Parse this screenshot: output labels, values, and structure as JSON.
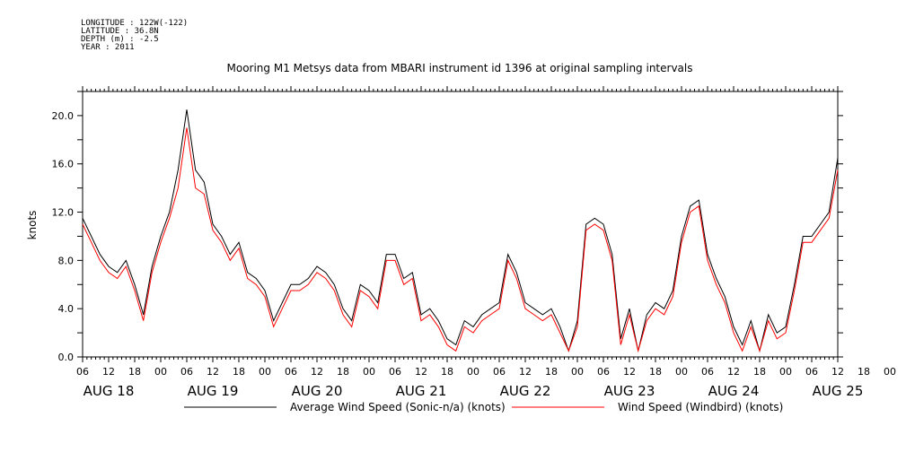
{
  "meta": {
    "longitude": "LONGITUDE : 122W(-122)",
    "latitude": "LATITUDE : 36.8N",
    "depth": "DEPTH (m) : -2.5",
    "year": "YEAR : 2011"
  },
  "chart_data": {
    "type": "line",
    "title": "Mooring M1 Metsys data from MBARI instrument id 1396 at original sampling intervals",
    "xlabel": "",
    "ylabel": "knots",
    "ylim": [
      0,
      22
    ],
    "yticks": [
      "0.0",
      "4.0",
      "8.0",
      "12.0",
      "16.0",
      "20.0"
    ],
    "xlim_hours": [
      0,
      174
    ],
    "hour_ticks": [
      "06",
      "12",
      "18",
      "00",
      "06",
      "12",
      "18",
      "00",
      "06",
      "12",
      "18",
      "00",
      "06",
      "12",
      "18",
      "00",
      "06",
      "12",
      "18",
      "00",
      "06",
      "12",
      "18",
      "00",
      "06",
      "12",
      "18",
      "00",
      "06",
      "12",
      "18",
      "00",
      "06"
    ],
    "day_labels": [
      "AUG 18",
      "AUG 19",
      "AUG 20",
      "AUG 21",
      "AUG 22",
      "AUG 23",
      "AUG 24",
      "AUG 25"
    ],
    "grid": false,
    "legend_position": "bottom",
    "series": [
      {
        "name": "Average Wind Speed (Sonic-n/a) (knots)",
        "color": "#000000",
        "x_hours": [
          0,
          2,
          4,
          6,
          8,
          10,
          12,
          14,
          16,
          18,
          20,
          22,
          24,
          26,
          28,
          30,
          32,
          34,
          36,
          38,
          40,
          42,
          44,
          46,
          48,
          50,
          52,
          54,
          56,
          58,
          60,
          62,
          64,
          66,
          68,
          70,
          72,
          74,
          76,
          78,
          80,
          82,
          84,
          86,
          88,
          90,
          92,
          94,
          96,
          98,
          100,
          102,
          104,
          106,
          108,
          110,
          112,
          114,
          116,
          118,
          120,
          122,
          124,
          126,
          128,
          130,
          132,
          134,
          136,
          138,
          140,
          142,
          144,
          146,
          148,
          150,
          152,
          154,
          156,
          158,
          160,
          162,
          164,
          166,
          168,
          170,
          172,
          174
        ],
        "values": [
          11.5,
          10,
          8.5,
          7.5,
          7,
          8,
          6,
          3.5,
          7.5,
          10,
          12,
          15.5,
          20.5,
          15.5,
          14.5,
          11,
          10,
          8.5,
          9.5,
          7,
          6.5,
          5.5,
          3,
          4.5,
          6,
          6,
          6.5,
          7.5,
          7,
          6,
          4,
          3,
          6,
          5.5,
          4.5,
          8.5,
          8.5,
          6.5,
          7,
          3.5,
          4,
          3,
          1.5,
          1,
          3,
          2.5,
          3.5,
          4,
          4.5,
          8.5,
          7,
          4.5,
          4,
          3.5,
          4,
          2.5,
          0.5,
          3,
          11,
          11.5,
          11,
          8.5,
          1.5,
          4,
          0.5,
          3.5,
          4.5,
          4,
          5.5,
          10,
          12.5,
          13,
          8.5,
          6.5,
          5,
          2.5,
          1,
          3,
          0.5,
          3.5,
          2,
          2.5,
          6,
          10,
          10,
          11,
          12,
          16.5
        ]
      },
      {
        "name": "Wind Speed (Windbird) (knots)",
        "color": "#ff0000",
        "x_hours": [
          0,
          2,
          4,
          6,
          8,
          10,
          12,
          14,
          16,
          18,
          20,
          22,
          24,
          26,
          28,
          30,
          32,
          34,
          36,
          38,
          40,
          42,
          44,
          46,
          48,
          50,
          52,
          54,
          56,
          58,
          60,
          62,
          64,
          66,
          68,
          70,
          72,
          74,
          76,
          78,
          80,
          82,
          84,
          86,
          88,
          90,
          92,
          94,
          96,
          98,
          100,
          102,
          104,
          106,
          108,
          110,
          112,
          114,
          116,
          118,
          120,
          122,
          124,
          126,
          128,
          130,
          132,
          134,
          136,
          138,
          140,
          142,
          144,
          146,
          148,
          150,
          152,
          154,
          156,
          158,
          160,
          162,
          164,
          166,
          168,
          170,
          172,
          174
        ],
        "values": [
          11,
          9.5,
          8,
          7,
          6.5,
          7.5,
          5.5,
          3,
          7,
          9.5,
          11.5,
          14,
          19,
          14,
          13.5,
          10.5,
          9.5,
          8,
          9,
          6.5,
          6,
          5,
          2.5,
          4,
          5.5,
          5.5,
          6,
          7,
          6.5,
          5.5,
          3.5,
          2.5,
          5.5,
          5,
          4,
          8,
          8,
          6,
          6.5,
          3,
          3.5,
          2.5,
          1,
          0.5,
          2.5,
          2,
          3,
          3.5,
          4,
          8,
          6.5,
          4,
          3.5,
          3,
          3.5,
          2,
          0.5,
          2.5,
          10.5,
          11,
          10.5,
          8,
          1,
          3.5,
          0.5,
          3,
          4,
          3.5,
          5,
          9.5,
          12,
          12.5,
          8,
          6,
          4.5,
          2,
          0.5,
          2.5,
          0.5,
          3,
          1.5,
          2,
          5.5,
          9.5,
          9.5,
          10.5,
          11.5,
          15.5
        ]
      }
    ]
  }
}
